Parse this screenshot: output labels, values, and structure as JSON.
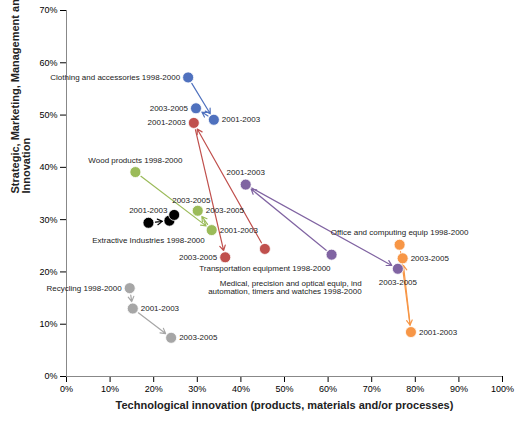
{
  "chart_data": {
    "type": "scatter",
    "x_label": "Technological innovation (products, materials and/or processes)",
    "y_label": "Strategic, Marketing, Management and/or Organizational Innovation",
    "xlim": [
      0,
      100
    ],
    "xticks": [
      {
        "value": 0,
        "label": "0%"
      },
      {
        "value": 10,
        "label": "10%"
      },
      {
        "value": 20,
        "label": "20%"
      },
      {
        "value": 30,
        "label": "30%"
      },
      {
        "value": 40,
        "label": "40%"
      },
      {
        "value": 50,
        "label": "50%"
      },
      {
        "value": 60,
        "label": "60%"
      },
      {
        "value": 70,
        "label": "70%"
      },
      {
        "value": 80,
        "label": "80%"
      },
      {
        "value": 90,
        "label": "90%"
      },
      {
        "value": 100,
        "label": "100%"
      }
    ],
    "ylim": [
      0,
      70
    ],
    "yticks": [
      {
        "value": 0,
        "label": "0%"
      },
      {
        "value": 10,
        "label": "10%"
      },
      {
        "value": 20,
        "label": "20%"
      },
      {
        "value": 30,
        "label": "30%"
      },
      {
        "value": 40,
        "label": "40%"
      },
      {
        "value": 50,
        "label": "50%"
      },
      {
        "value": 60,
        "label": "60%"
      },
      {
        "value": 70,
        "label": "70%"
      }
    ],
    "marker": "circle",
    "series": [
      {
        "color": "#4f71be",
        "x": [
          27.9,
          33.8,
          29.7
        ],
        "y": [
          57.2,
          49.1,
          51.3
        ],
        "labels": [
          "Clothing and accessories 1998-2000",
          "2001-2003",
          "2003-2005"
        ]
      },
      {
        "color": "#c0504d",
        "x": [
          45.5,
          29.2,
          36.4
        ],
        "y": [
          24.4,
          48.5,
          22.8
        ],
        "labels": [
          "Transportation equipment 1998-2000",
          "2001-2003",
          "2003-2005"
        ]
      },
      {
        "color": "#9bbb59",
        "x": [
          15.8,
          33.3,
          30.1
        ],
        "y": [
          39.1,
          28.0,
          31.7
        ],
        "labels": [
          "Wood products 1998-2000",
          "2001-2003",
          "2003-2005"
        ]
      },
      {
        "color": "#000000",
        "x": [
          18.8,
          23.6,
          24.7
        ],
        "y": [
          29.4,
          29.8,
          30.9
        ],
        "labels": [
          "Extractive Industries 1998-2000",
          "2001-2003",
          "2003-2005"
        ]
      },
      {
        "color": "#8064a2",
        "x": [
          60.8,
          41.1,
          76.0
        ],
        "y": [
          23.3,
          36.7,
          20.6
        ],
        "labels": [
          "Medical, precision and optical equip, ind\nautomation, timers and watches 1998-2000",
          "2001-2003",
          "2003-2005"
        ]
      },
      {
        "color": "#f79646",
        "x": [
          76.4,
          79.0,
          77.1
        ],
        "y": [
          25.2,
          8.5,
          22.6
        ],
        "labels": [
          "Office and computing equip 1998-2000",
          "2001-2003",
          "2003-2005"
        ]
      },
      {
        "color": "#a6a6a6",
        "x": [
          14.5,
          15.2,
          24.0
        ],
        "y": [
          16.9,
          13.0,
          7.4
        ],
        "labels": [
          "Recycling 1998-2000",
          "2001-2003",
          "2003-2005"
        ]
      }
    ]
  }
}
